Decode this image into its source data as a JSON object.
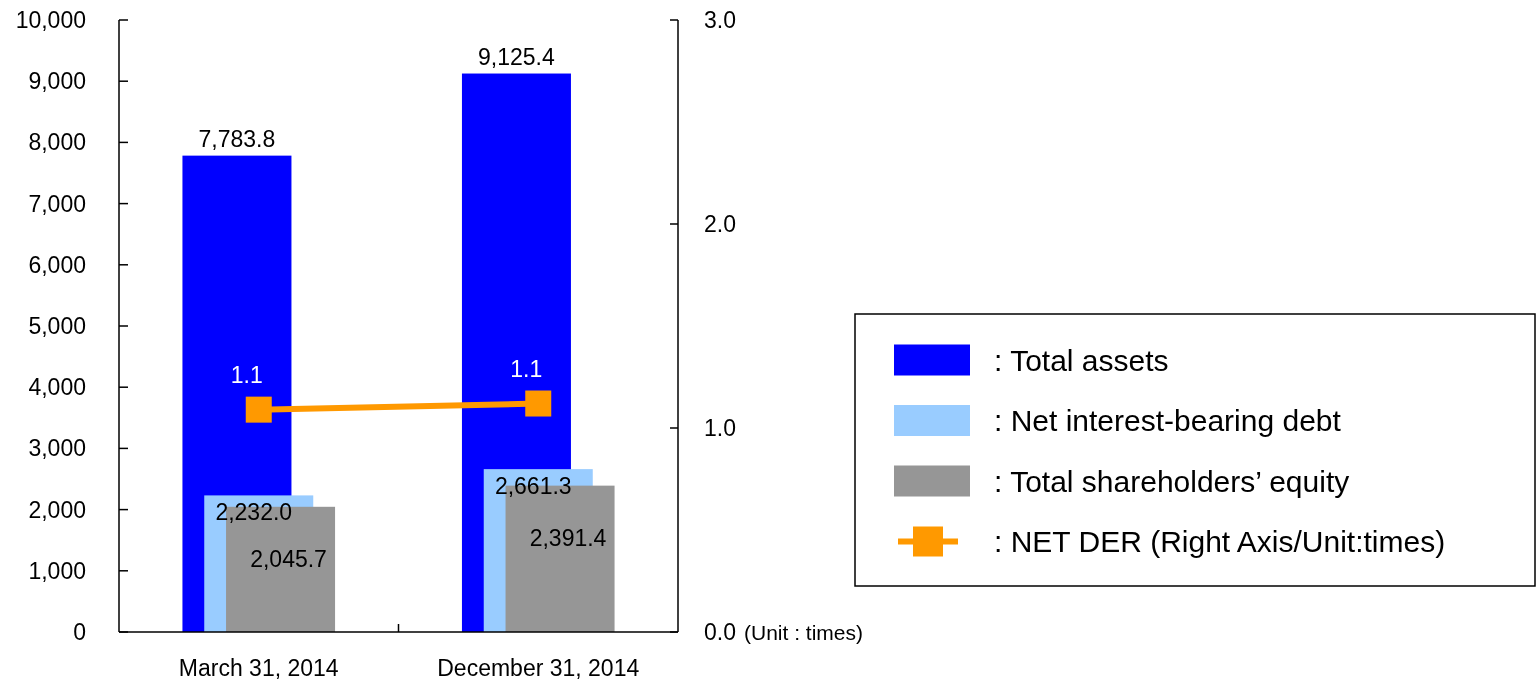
{
  "chart_data": {
    "type": "bar",
    "categories": [
      "March 31, 2014",
      "December 31, 2014"
    ],
    "series": [
      {
        "name": ": Total assets",
        "color": "#0000ff",
        "values": [
          7783.8,
          9125.4
        ],
        "value_labels": [
          "7,783.8",
          "9,125.4"
        ]
      },
      {
        "name": ": Net interest-bearing debt",
        "color": "#99ccff",
        "values": [
          2232.0,
          2661.3
        ],
        "value_labels": [
          "2,232.0",
          "2,661.3"
        ]
      },
      {
        "name": ": Total shareholders’ equity",
        "color": "#969696",
        "values": [
          2045.7,
          2391.4
        ],
        "value_labels": [
          "2,045.7",
          "2,391.4"
        ]
      },
      {
        "name": ": NET DER (Right Axis/Unit:times)",
        "type": "line",
        "axis": "y2",
        "color": "#ff9900",
        "marker": "square",
        "values": [
          1.09,
          1.12
        ],
        "value_labels": [
          "1.1",
          "1.1"
        ]
      }
    ],
    "ylim": [
      0,
      10000
    ],
    "yticks": [
      {
        "value": 0,
        "label": "0"
      },
      {
        "value": 1000,
        "label": "1,000"
      },
      {
        "value": 2000,
        "label": "2,000"
      },
      {
        "value": 3000,
        "label": "3,000"
      },
      {
        "value": 4000,
        "label": "4,000"
      },
      {
        "value": 5000,
        "label": "5,000"
      },
      {
        "value": 6000,
        "label": "6,000"
      },
      {
        "value": 7000,
        "label": "7,000"
      },
      {
        "value": 8000,
        "label": "8,000"
      },
      {
        "value": 9000,
        "label": "9,000"
      },
      {
        "value": 10000,
        "label": "10,000"
      }
    ],
    "y2lim": [
      0,
      3
    ],
    "y2ticks": [
      {
        "value": 0,
        "label": "0.0"
      },
      {
        "value": 1,
        "label": "1.0"
      },
      {
        "value": 2,
        "label": "2.0"
      },
      {
        "value": 3,
        "label": "3.0"
      }
    ],
    "y2label": "(Unit : times)",
    "legend": "right"
  }
}
